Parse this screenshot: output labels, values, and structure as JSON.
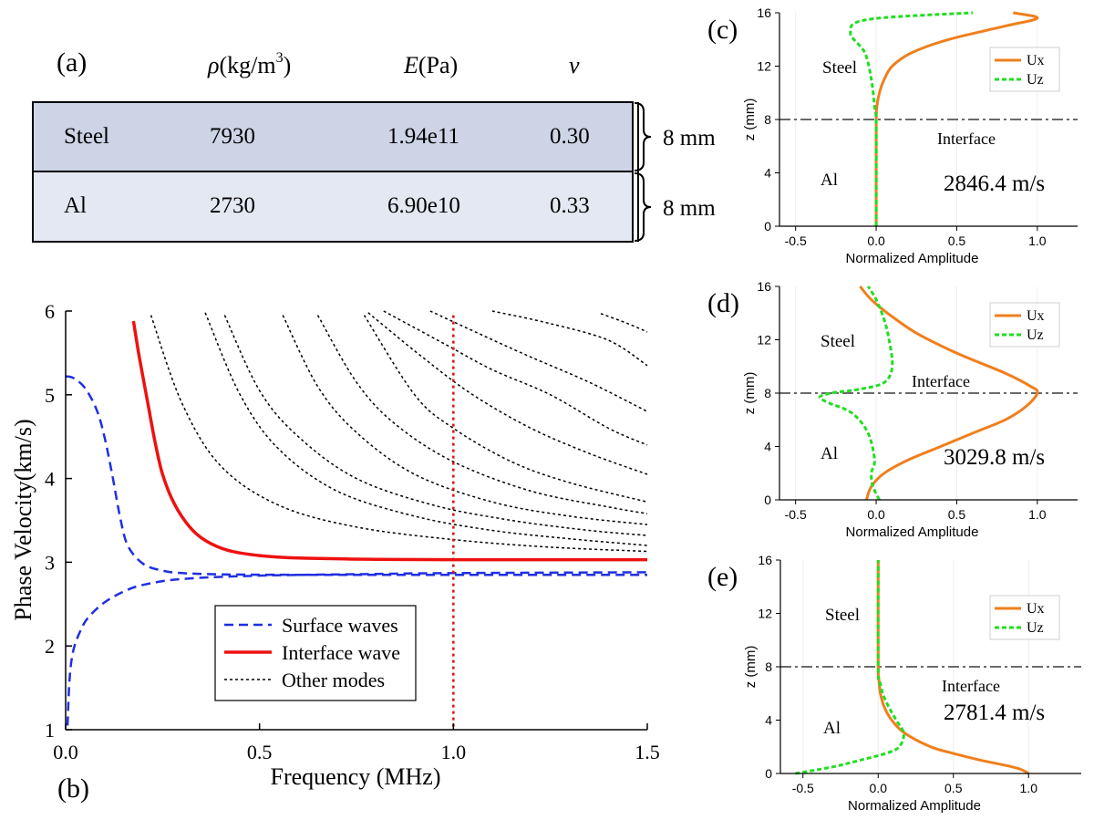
{
  "figure": {
    "panel_labels": {
      "a": "(a)",
      "b": "(b)",
      "c": "(c)",
      "d": "(d)",
      "e": "(e)"
    }
  },
  "colors": {
    "table_row_steel": "#cdd4e6",
    "table_row_al": "#e3e8f2",
    "surface": "#1f2fe0",
    "interface": "#ee1111",
    "other": "#000000",
    "marker_line": "#dd1111",
    "ux": "#f07f1c",
    "uz": "#22dd22",
    "dashdot": "#555555"
  },
  "table": {
    "headers": {
      "rho_symbol": "ρ",
      "rho_unit": "(kg/m",
      "rho_exp": "3",
      "rho_close": ")",
      "E_symbol": "E",
      "E_unit": "(Pa)",
      "nu_symbol": "ν"
    },
    "rows": [
      {
        "material": "Steel",
        "density": "7930",
        "modulus": "1.94e11",
        "poisson": "0.30",
        "thickness": "8 mm"
      },
      {
        "material": "Al",
        "density": "2730",
        "modulus": "6.90e10",
        "poisson": "0.33",
        "thickness": "8 mm"
      }
    ]
  },
  "chart_data": [
    {
      "id": "b",
      "type": "line",
      "xlabel": "Frequency (MHz)",
      "ylabel": "Phase Velocity(km/s)",
      "xlim": [
        0,
        1.5
      ],
      "ylim": [
        1,
        6
      ],
      "x_ticks": [
        "0.0",
        "0.5",
        "1.0",
        "1.5"
      ],
      "x_tick_values": [
        0,
        0.5,
        1.0,
        1.5
      ],
      "y_ticks": [
        "1",
        "2",
        "3",
        "4",
        "5",
        "6"
      ],
      "y_tick_values": [
        1,
        2,
        3,
        4,
        5,
        6
      ],
      "marker_frequency": 1.0,
      "legend": {
        "surface": "Surface waves",
        "interface": "Interface wave",
        "other": "Other modes"
      },
      "series": [
        {
          "name": "Surface waves (upper)",
          "style": "surface",
          "x": [
            0,
            0.02,
            0.05,
            0.08,
            0.1,
            0.12,
            0.14,
            0.16,
            0.2,
            0.25,
            0.3,
            0.4,
            0.6,
            1.0,
            1.5
          ],
          "y": [
            5.22,
            5.2,
            5.08,
            4.82,
            4.5,
            4.05,
            3.55,
            3.2,
            2.98,
            2.9,
            2.87,
            2.855,
            2.85,
            2.85,
            2.85
          ]
        },
        {
          "name": "Surface waves (lower)",
          "style": "surface",
          "x": [
            0.005,
            0.01,
            0.02,
            0.04,
            0.06,
            0.1,
            0.15,
            0.2,
            0.3,
            0.5,
            0.8,
            1.0,
            1.5
          ],
          "y": [
            1.05,
            1.6,
            1.95,
            2.2,
            2.35,
            2.52,
            2.65,
            2.73,
            2.8,
            2.84,
            2.86,
            2.87,
            2.88
          ]
        },
        {
          "name": "Interface wave",
          "style": "interface",
          "x": [
            0.175,
            0.19,
            0.21,
            0.23,
            0.25,
            0.28,
            0.32,
            0.36,
            0.42,
            0.5,
            0.6,
            0.8,
            1.0,
            1.5
          ],
          "y": [
            5.88,
            5.45,
            4.95,
            4.45,
            4.05,
            3.7,
            3.42,
            3.26,
            3.14,
            3.08,
            3.05,
            3.035,
            3.03,
            3.03
          ]
        },
        {
          "name": "Other mode 1",
          "style": "other",
          "x": [
            0.22,
            0.3,
            0.4,
            0.55,
            0.75,
            1.0,
            1.25,
            1.5
          ],
          "y": [
            5.95,
            4.9,
            4.15,
            3.68,
            3.42,
            3.27,
            3.18,
            3.13
          ]
        },
        {
          "name": "Other mode 2",
          "style": "other",
          "x": [
            0.36,
            0.45,
            0.55,
            0.7,
            0.9,
            1.1,
            1.3,
            1.5
          ],
          "y": [
            5.98,
            5.0,
            4.35,
            3.85,
            3.55,
            3.38,
            3.28,
            3.2
          ]
        },
        {
          "name": "Other mode 3",
          "style": "other",
          "x": [
            0.41,
            0.5,
            0.6,
            0.75,
            0.95,
            1.15,
            1.35,
            1.5
          ],
          "y": [
            5.95,
            5.05,
            4.5,
            4.0,
            3.68,
            3.5,
            3.38,
            3.32
          ]
        },
        {
          "name": "Other mode 4",
          "style": "other",
          "x": [
            0.56,
            0.65,
            0.75,
            0.9,
            1.1,
            1.3,
            1.5
          ],
          "y": [
            5.95,
            5.1,
            4.55,
            4.05,
            3.72,
            3.55,
            3.45
          ]
        },
        {
          "name": "Other mode 5",
          "style": "other",
          "x": [
            0.65,
            0.75,
            0.85,
            1.0,
            1.2,
            1.4,
            1.5
          ],
          "y": [
            5.95,
            5.15,
            4.65,
            4.2,
            3.85,
            3.66,
            3.58
          ]
        },
        {
          "name": "Other mode 6",
          "style": "other",
          "x": [
            0.77,
            0.9,
            1.0,
            1.15,
            1.3,
            1.5
          ],
          "y": [
            5.95,
            5.0,
            4.6,
            4.2,
            3.95,
            3.72
          ]
        },
        {
          "name": "Other mode 7",
          "style": "other",
          "x": [
            0.78,
            0.92,
            1.05,
            1.2,
            1.35,
            1.5
          ],
          "y": [
            5.98,
            5.45,
            5.0,
            4.6,
            4.3,
            4.05
          ]
        },
        {
          "name": "Other mode 8",
          "style": "other",
          "x": [
            0.82,
            0.98,
            1.1,
            1.25,
            1.4,
            1.5
          ],
          "y": [
            6.0,
            5.6,
            5.3,
            5.0,
            4.6,
            4.4
          ]
        },
        {
          "name": "Other mode 9",
          "style": "other",
          "x": [
            0.94,
            1.08,
            1.2,
            1.35,
            1.5
          ],
          "y": [
            6.0,
            5.7,
            5.45,
            5.15,
            4.8
          ]
        },
        {
          "name": "Other mode 10",
          "style": "other",
          "x": [
            1.1,
            1.25,
            1.4,
            1.5
          ],
          "y": [
            6.0,
            5.85,
            5.65,
            5.35
          ]
        },
        {
          "name": "Other mode 11",
          "style": "other",
          "x": [
            1.38,
            1.45,
            1.5
          ],
          "y": [
            5.97,
            5.85,
            5.75
          ]
        }
      ]
    },
    {
      "id": "c",
      "type": "line",
      "xlabel": "Normalized Amplitude",
      "ylabel": "z (mm)",
      "xlim": [
        -0.6,
        1.25
      ],
      "ylim": [
        0,
        16
      ],
      "x_ticks": [
        "-0.5",
        "0.0",
        "0.5",
        "1.0"
      ],
      "x_tick_values": [
        -0.5,
        0,
        0.5,
        1.0
      ],
      "y_ticks": [
        "0",
        "4",
        "8",
        "12",
        "16"
      ],
      "y_tick_values": [
        0,
        4,
        8,
        12,
        16
      ],
      "interface_z": 8,
      "labels": {
        "upper": "Steel",
        "lower": "Al",
        "interface": "Interface",
        "velocity": "2846.4 m/s"
      },
      "legend": {
        "ux": "Ux",
        "uz": "Uz"
      },
      "series": [
        {
          "name": "Ux",
          "z": [
            0,
            7.5,
            9,
            10,
            11,
            12,
            13,
            14,
            15,
            15.6,
            16
          ],
          "u": [
            0,
            0,
            0.005,
            0.02,
            0.05,
            0.1,
            0.22,
            0.45,
            0.8,
            1.0,
            0.85
          ]
        },
        {
          "name": "Uz",
          "z": [
            0,
            7.5,
            9,
            11,
            13,
            14.5,
            15.5,
            16
          ],
          "u": [
            0,
            0,
            -0.01,
            -0.03,
            -0.07,
            -0.16,
            -0.05,
            0.6
          ]
        }
      ]
    },
    {
      "id": "d",
      "type": "line",
      "xlabel": "Normalized Amplitude",
      "ylabel": "z (mm)",
      "xlim": [
        -0.6,
        1.25
      ],
      "ylim": [
        0,
        16
      ],
      "x_ticks": [
        "-0.5",
        "0.0",
        "0.5",
        "1.0"
      ],
      "x_tick_values": [
        -0.5,
        0,
        0.5,
        1.0
      ],
      "y_ticks": [
        "0",
        "4",
        "8",
        "12",
        "16"
      ],
      "y_tick_values": [
        0,
        4,
        8,
        12,
        16
      ],
      "interface_z": 8,
      "labels": {
        "upper": "Steel",
        "lower": "Al",
        "interface": "Interface",
        "velocity": "3029.8 m/s"
      },
      "legend": {
        "ux": "Ux",
        "uz": "Uz"
      },
      "series": [
        {
          "name": "Ux",
          "z": [
            0,
            1,
            2,
            3,
            4,
            5,
            6,
            7,
            8,
            8.5,
            9.5,
            11,
            12.5,
            14,
            15,
            16
          ],
          "u": [
            -0.06,
            -0.03,
            0.05,
            0.2,
            0.4,
            0.6,
            0.8,
            0.93,
            1.0,
            0.96,
            0.8,
            0.5,
            0.25,
            0.07,
            -0.03,
            -0.1
          ]
        },
        {
          "name": "Uz",
          "z": [
            0,
            1,
            2,
            3,
            5,
            6.5,
            7.3,
            7.7,
            8,
            8.3,
            8.8,
            10,
            12,
            13.5,
            15,
            16
          ],
          "u": [
            0.02,
            -0.02,
            -0.03,
            -0.01,
            -0.05,
            -0.15,
            -0.3,
            -0.35,
            -0.28,
            -0.1,
            0.05,
            0.1,
            0.08,
            0.05,
            0.0,
            -0.05
          ]
        }
      ]
    },
    {
      "id": "e",
      "type": "line",
      "xlabel": "Normalized Amplitude",
      "ylabel": "z (mm)",
      "xlim": [
        -0.65,
        1.35
      ],
      "ylim": [
        0,
        16
      ],
      "x_ticks": [
        "-0.5",
        "0.0",
        "0.5",
        "1.0"
      ],
      "x_tick_values": [
        -0.5,
        0,
        0.5,
        1.0
      ],
      "y_ticks": [
        "0",
        "4",
        "8",
        "12",
        "16"
      ],
      "y_tick_values": [
        0,
        4,
        8,
        12,
        16
      ],
      "interface_z": 8,
      "labels": {
        "upper": "Steel",
        "lower": "Al",
        "interface": "Interface",
        "velocity": "2781.4 m/s"
      },
      "legend": {
        "ux": "Ux",
        "uz": "Uz"
      },
      "series": [
        {
          "name": "Ux",
          "z": [
            0,
            0.3,
            0.6,
            1,
            1.5,
            2,
            3,
            4,
            5,
            6,
            7,
            8,
            16
          ],
          "u": [
            1.0,
            0.95,
            0.85,
            0.68,
            0.5,
            0.35,
            0.18,
            0.09,
            0.04,
            0.015,
            0.005,
            0.0,
            0.0
          ]
        },
        {
          "name": "Uz",
          "z": [
            0,
            0.5,
            1,
            1.5,
            2,
            3,
            4,
            5,
            6,
            7,
            8,
            16
          ],
          "u": [
            -0.55,
            -0.3,
            -0.12,
            0.05,
            0.14,
            0.17,
            0.12,
            0.07,
            0.03,
            0.01,
            0.0,
            0.0
          ]
        }
      ]
    }
  ]
}
